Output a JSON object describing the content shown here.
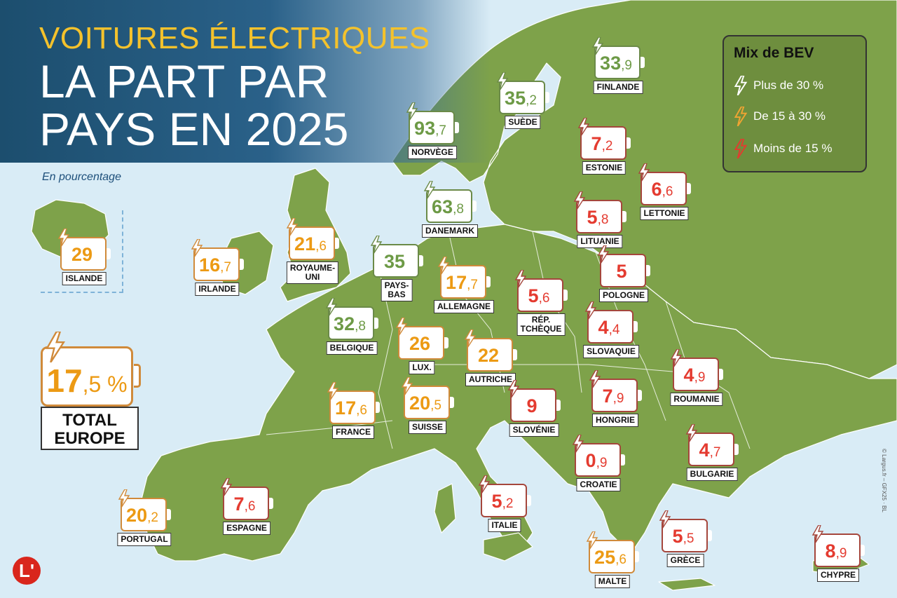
{
  "header": {
    "kicker": "VOITURES ÉLECTRIQUES",
    "title": "LA PART PAR\nPAYS EN 2025",
    "subtitle": "En pourcentage"
  },
  "legend": {
    "title": "Mix de BEV",
    "items": [
      {
        "label": "Plus de 30 %",
        "color": "#ffffff"
      },
      {
        "label": "De 15 à 30 %",
        "color": "#f0a432"
      },
      {
        "label": "Moins de 15 %",
        "color": "#e23c2f"
      }
    ]
  },
  "colors": {
    "green": "#6d9a46",
    "orange": "#ec9a14",
    "red": "#e43b30",
    "land": "#7ea24a",
    "sea": "#d9ecf6"
  },
  "total": {
    "int": "17",
    "dec": ",5 %",
    "label": "TOTAL\nEUROPE",
    "value": 17.5
  },
  "countries": [
    {
      "name": "ISLANDE",
      "int": "29",
      "dec": "",
      "value": 29,
      "cat": "orange"
    },
    {
      "name": "IRLANDE",
      "int": "16",
      "dec": ",7",
      "value": 16.7,
      "cat": "orange"
    },
    {
      "name": "ROYAUME-\nUNI",
      "int": "21",
      "dec": ",6",
      "value": 21.6,
      "cat": "orange"
    },
    {
      "name": "NORVÈGE",
      "int": "93",
      "dec": ",7",
      "value": 93.7,
      "cat": "green"
    },
    {
      "name": "SUÈDE",
      "int": "35",
      "dec": ",2",
      "value": 35.2,
      "cat": "green"
    },
    {
      "name": "FINLANDE",
      "int": "33",
      "dec": ",9",
      "value": 33.9,
      "cat": "green"
    },
    {
      "name": "DANEMARK",
      "int": "63",
      "dec": ",8",
      "value": 63.8,
      "cat": "green"
    },
    {
      "name": "ESTONIE",
      "int": "7",
      "dec": ",2",
      "value": 7.2,
      "cat": "red"
    },
    {
      "name": "LETTONIE",
      "int": "6",
      "dec": ",6",
      "value": 6.6,
      "cat": "red"
    },
    {
      "name": "LITUANIE",
      "int": "5",
      "dec": ",8",
      "value": 5.8,
      "cat": "red"
    },
    {
      "name": "PAYS-\nBAS",
      "int": "35",
      "dec": "",
      "value": 35,
      "cat": "green"
    },
    {
      "name": "BELGIQUE",
      "int": "32",
      "dec": ",8",
      "value": 32.8,
      "cat": "green"
    },
    {
      "name": "ALLEMAGNE",
      "int": "17",
      "dec": ",7",
      "value": 17.7,
      "cat": "orange"
    },
    {
      "name": "POLOGNE",
      "int": "5",
      "dec": "",
      "value": 5,
      "cat": "red"
    },
    {
      "name": "RÉP.\nTCHÈQUE",
      "int": "5",
      "dec": ",6",
      "value": 5.6,
      "cat": "red"
    },
    {
      "name": "LUX.",
      "int": "26",
      "dec": "",
      "value": 26,
      "cat": "orange"
    },
    {
      "name": "SLOVAQUIE",
      "int": "4",
      "dec": ",4",
      "value": 4.4,
      "cat": "red"
    },
    {
      "name": "AUTRICHE",
      "int": "22",
      "dec": "",
      "value": 22,
      "cat": "orange"
    },
    {
      "name": "ROUMANIE",
      "int": "4",
      "dec": ",9",
      "value": 4.9,
      "cat": "red"
    },
    {
      "name": "FRANCE",
      "int": "17",
      "dec": ",6",
      "value": 17.6,
      "cat": "orange"
    },
    {
      "name": "SUISSE",
      "int": "20",
      "dec": ",5",
      "value": 20.5,
      "cat": "orange"
    },
    {
      "name": "SLOVÉNIE",
      "int": "9",
      "dec": "",
      "value": 9,
      "cat": "red"
    },
    {
      "name": "HONGRIE",
      "int": "7",
      "dec": ",9",
      "value": 7.9,
      "cat": "red"
    },
    {
      "name": "CROATIE",
      "int": "0",
      "dec": ",9",
      "value": 0.9,
      "cat": "red"
    },
    {
      "name": "BULGARIE",
      "int": "4",
      "dec": ",7",
      "value": 4.7,
      "cat": "red"
    },
    {
      "name": "PORTUGAL",
      "int": "20",
      "dec": ",2",
      "value": 20.2,
      "cat": "orange"
    },
    {
      "name": "ESPAGNE",
      "int": "7",
      "dec": ",6",
      "value": 7.6,
      "cat": "red"
    },
    {
      "name": "ITALIE",
      "int": "5",
      "dec": ",2",
      "value": 5.2,
      "cat": "red"
    },
    {
      "name": "GRÈCE",
      "int": "5",
      "dec": ",5",
      "value": 5.5,
      "cat": "red"
    },
    {
      "name": "MALTE",
      "int": "25",
      "dec": ",6",
      "value": 25.6,
      "cat": "orange"
    },
    {
      "name": "CHYPRE",
      "int": "8",
      "dec": ",9",
      "value": 8.9,
      "cat": "red"
    }
  ],
  "logo": "L'",
  "credit": "© Largus.fr – GFX25 · BL"
}
